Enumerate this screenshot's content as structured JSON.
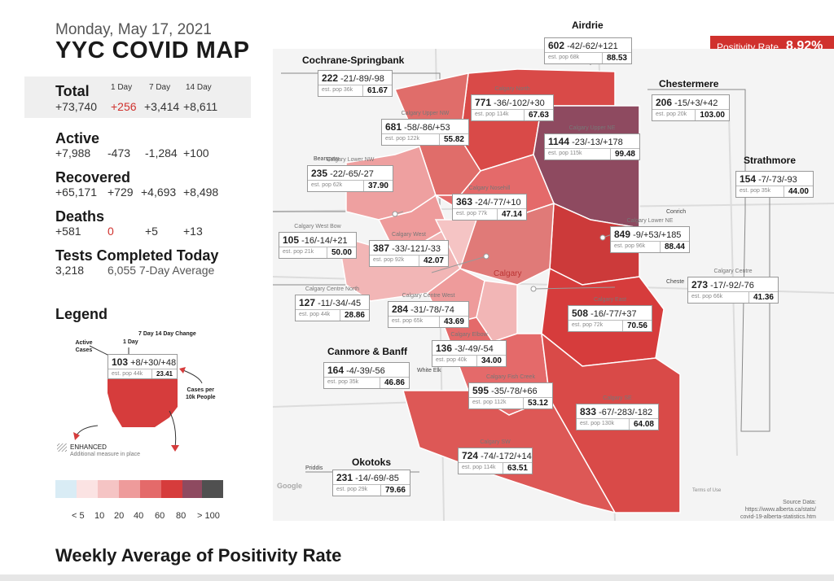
{
  "header": {
    "date": "Monday, May 17, 2021",
    "title": "YYC COVID MAP"
  },
  "positivity": {
    "label": "Positivity Rate",
    "value": "8.92%"
  },
  "total": {
    "label": "Total",
    "h1": "1 Day",
    "h7": "7 Day",
    "h14": "14 Day",
    "value": "+73,740",
    "d1": "+256",
    "d7": "+3,414",
    "d14": "+8,611"
  },
  "active": {
    "label": "Active",
    "value": "+7,988",
    "d1": "-473",
    "d7": "-1,284",
    "d14": "+100"
  },
  "recovered": {
    "label": "Recovered",
    "value": "+65,171",
    "d1": "+729",
    "d7": "+4,693",
    "d14": "+8,498"
  },
  "deaths": {
    "label": "Deaths",
    "value": "+581",
    "d1": "0",
    "d7": "+5",
    "d14": "+13"
  },
  "tests": {
    "label": "Tests Completed Today",
    "value": "3,218",
    "avg": "6,055 7-Day Average"
  },
  "legend": {
    "title": "Legend",
    "active_cases": "Active\nCases",
    "day1": "1 Day",
    "change": "7 Day  14 Day Change",
    "sample_active": "103",
    "sample_changes": "+8/+30/+48",
    "sample_pop": "est. pop 44k",
    "sample_per": "23.41",
    "cases_per": "Cases per\n10k People",
    "enhanced": "ENHANCED",
    "enhanced_sub": "Additional measure in place",
    "scale_labels": [
      "< 5",
      "10",
      "20",
      "40",
      "60",
      "80",
      "> 100"
    ],
    "scale_colors": [
      "#d9ecf5",
      "#fbe3e3",
      "#f5c4c4",
      "#ee9b9b",
      "#e46a6a",
      "#d63c3c",
      "#8e4a60",
      "#505050"
    ]
  },
  "bottom_title": "Weekly Average of Positivity Rate",
  "source": {
    "label": "Source Data:",
    "url1": "https://www.alberta.ca/stats/",
    "url2": "covid-19-alberta-statistics.htm"
  },
  "places": [
    "Cochrane-Springbank",
    "Airdrie",
    "Chestermere",
    "Strathmore",
    "Canmore & Banff",
    "Okotoks"
  ],
  "regions": [
    {
      "name": "",
      "active": "222",
      "changes": "-21/-89/-98",
      "pop": "est. pop 36k",
      "per": "61.67"
    },
    {
      "name": "",
      "active": "602",
      "changes": "-42/-62/+121",
      "pop": "est. pop 68k",
      "per": "88.53"
    },
    {
      "name": "",
      "active": "206",
      "changes": "-15/+3/+42",
      "pop": "est. pop 20k",
      "per": "103.00"
    },
    {
      "name": "",
      "active": "154",
      "changes": "-7/-73/-93",
      "pop": "est. pop 35k",
      "per": "44.00"
    },
    {
      "name": "Calgary North",
      "active": "771",
      "changes": "-36/-102/+30",
      "pop": "est. pop 114k",
      "per": "67.63"
    },
    {
      "name": "Calgary Upper NW",
      "active": "681",
      "changes": "-58/-86/+53",
      "pop": "est. pop 122k",
      "per": "55.82"
    },
    {
      "name": "Calgary Upper NE",
      "active": "1144",
      "changes": "-23/-13/+178",
      "pop": "est. pop 115k",
      "per": "99.48"
    },
    {
      "name": "Calgary Lower NW",
      "active": "235",
      "changes": "-22/-65/-27",
      "pop": "est. pop 62k",
      "per": "37.90"
    },
    {
      "name": "Calgary Nosehill",
      "active": "363",
      "changes": "-24/-77/+10",
      "pop": "est. pop 77k",
      "per": "47.14"
    },
    {
      "name": "Calgary Lower NE",
      "active": "849",
      "changes": "-9/+53/+185",
      "pop": "est. pop 96k",
      "per": "88.44"
    },
    {
      "name": "Calgary West Bow",
      "active": "105",
      "changes": "-16/-14/+21",
      "pop": "est. pop 21k",
      "per": "50.00"
    },
    {
      "name": "Calgary West",
      "active": "387",
      "changes": "-33/-121/-33",
      "pop": "est. pop 92k",
      "per": "42.07"
    },
    {
      "name": "Calgary Centre",
      "active": "273",
      "changes": "-17/-92/-76",
      "pop": "est. pop 66k",
      "per": "41.36"
    },
    {
      "name": "Calgary Centre North",
      "active": "127",
      "changes": "-11/-34/-45",
      "pop": "est. pop 44k",
      "per": "28.86"
    },
    {
      "name": "Calgary Centre West",
      "active": "284",
      "changes": "-31/-78/-74",
      "pop": "est. pop 65k",
      "per": "43.69"
    },
    {
      "name": "Calgary East",
      "active": "508",
      "changes": "-16/-77/+37",
      "pop": "est. pop 72k",
      "per": "70.56"
    },
    {
      "name": "Calgary Elbow",
      "active": "136",
      "changes": "-3/-49/-54",
      "pop": "est. pop 40k",
      "per": "34.00"
    },
    {
      "name": "",
      "active": "164",
      "changes": "-4/-39/-56",
      "pop": "est. pop 35k",
      "per": "46.86"
    },
    {
      "name": "Calgary Fish Creek",
      "active": "595",
      "changes": "-35/-78/+66",
      "pop": "est. pop 112k",
      "per": "53.12"
    },
    {
      "name": "Calgary SE",
      "active": "833",
      "changes": "-67/-283/-182",
      "pop": "est. pop 130k",
      "per": "64.08"
    },
    {
      "name": "Calgary SW",
      "active": "724",
      "changes": "-74/-172/+14",
      "pop": "est. pop 114k",
      "per": "63.51"
    },
    {
      "name": "",
      "active": "231",
      "changes": "-14/-69/-85",
      "pop": "est. pop 29k",
      "per": "79.66"
    }
  ],
  "map_labels": {
    "calgary": "Calgary",
    "bearspaw": "Bearspaw",
    "chestermere_small": "Cheste",
    "conrich": "Conrich",
    "priddis": "Priddis",
    "white": "White Elk",
    "google": "Google",
    "terms": "Terms of Use"
  }
}
